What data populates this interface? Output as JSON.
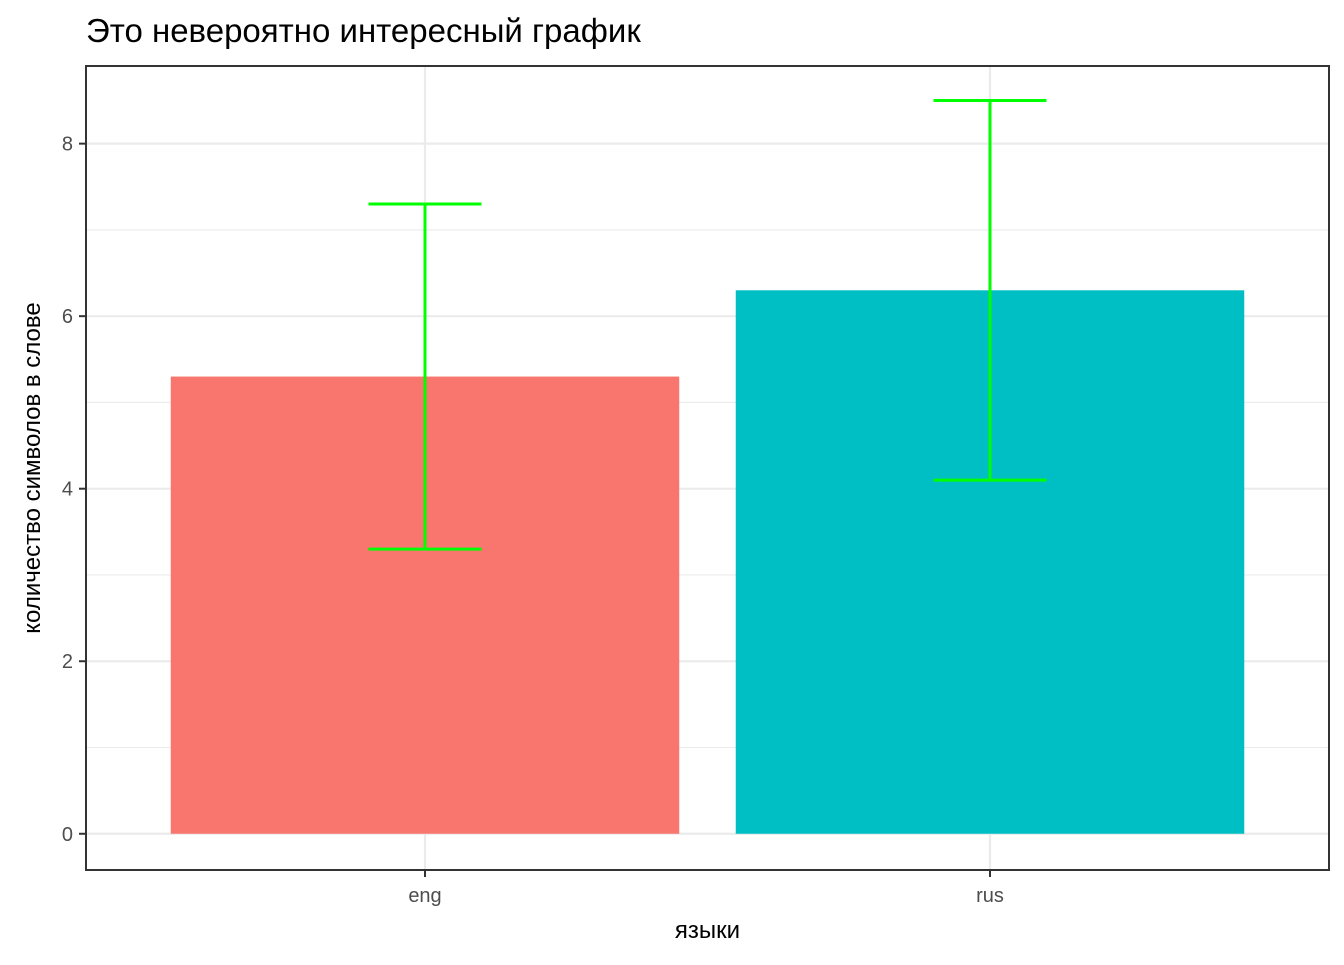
{
  "chart_data": {
    "type": "bar",
    "title": "Это невероятно интересный график",
    "xlabel": "языки",
    "ylabel": "количество символов в слове",
    "categories": [
      "eng",
      "rus"
    ],
    "values": [
      5.3,
      6.3
    ],
    "error_bars": [
      {
        "lower": 3.3,
        "upper": 7.3
      },
      {
        "lower": 4.1,
        "upper": 8.5
      }
    ],
    "bar_colors": [
      "#f8766d",
      "#00bfc4"
    ],
    "error_bar_color": "#00ff00",
    "y_ticks": [
      0,
      2,
      4,
      6,
      8
    ],
    "y_tick_labels": [
      "0",
      "2",
      "4",
      "6",
      "8"
    ],
    "ylim": [
      -0.42,
      8.9
    ],
    "grid": true,
    "legend": "none"
  }
}
